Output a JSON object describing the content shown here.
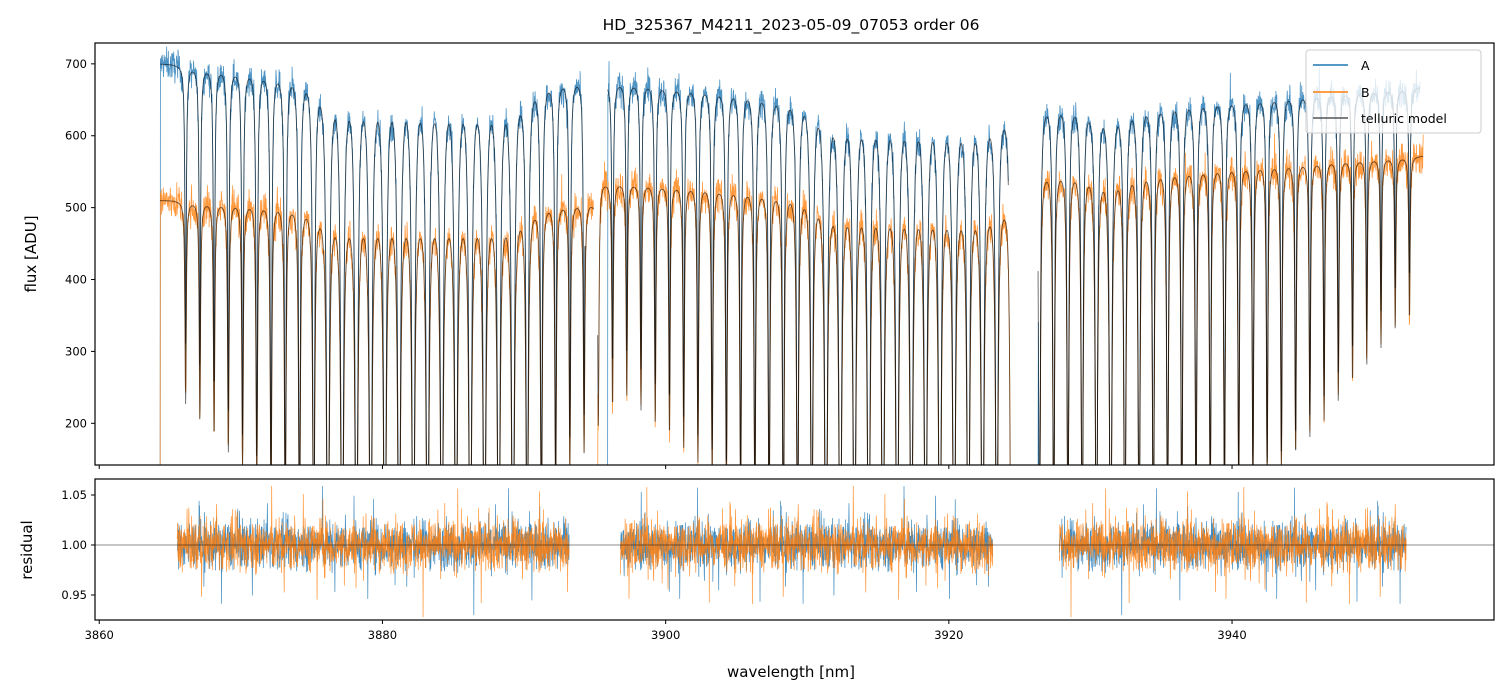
{
  "chart_data": [
    {
      "type": "line",
      "panel": "top",
      "title": "HD_325367_M4211_2023-05-09_07053  order 06",
      "xlabel": "",
      "ylabel": "flux [ADU]",
      "xlim": [
        3859.7,
        3958.5
      ],
      "ylim": [
        142,
        729
      ],
      "xticks": [
        3860,
        3880,
        3900,
        3920,
        3940
      ],
      "yticks": [
        200,
        300,
        400,
        500,
        600,
        700
      ],
      "ytick_labels": [
        "200",
        "300",
        "400",
        "500",
        "600",
        "700"
      ],
      "legend": {
        "placement": "top-right",
        "entries": [
          "A",
          "B",
          "telluric model"
        ]
      },
      "colors": {
        "A": "#1f77b4",
        "B": "#ff7f0e",
        "model": "#000000"
      },
      "series": [
        {
          "name": "A",
          "noise_rms": 11,
          "segments": [
            {
              "x": [
                3864.3,
                3894.3
              ],
              "continuum": [
                700,
                682
              ]
            },
            {
              "x": [
                3895.9,
                3924.2
              ],
              "continuum": [
                678,
                655
              ]
            },
            {
              "x": [
                3926.3,
                3953.3
              ],
              "continuum": [
                655,
                668
              ]
            }
          ]
        },
        {
          "name": "B",
          "noise_rms": 13,
          "segments": [
            {
              "x": [
                3864.3,
                3894.9
              ],
              "continuum": [
                510,
                510
              ]
            },
            {
              "x": [
                3895.2,
                3924.4
              ],
              "continuum": [
                538,
                520
              ]
            },
            {
              "x": [
                3926.4,
                3953.5
              ],
              "continuum": [
                560,
                572
              ]
            }
          ]
        }
      ],
      "telluric_lines": {
        "start": 3866.1,
        "spacing": 1.005,
        "end": 3952.6,
        "gamma_nm": 0.045,
        "depth_anchors": [
          [
            3866,
            0.55
          ],
          [
            3876,
            1.0
          ],
          [
            3890,
            1.0
          ],
          [
            3893,
            0.75
          ],
          [
            3897,
            0.55
          ],
          [
            3906,
            0.85
          ],
          [
            3911,
            1.0
          ],
          [
            3923,
            1.0
          ],
          [
            3928,
            0.9
          ],
          [
            3931,
            1.0
          ],
          [
            3936,
            0.9
          ],
          [
            3944,
            0.75
          ],
          [
            3952,
            0.4
          ]
        ]
      }
    },
    {
      "type": "line",
      "panel": "bottom",
      "xlabel": "wavelength [nm]",
      "ylabel": "residual",
      "xlim": [
        3859.7,
        3958.5
      ],
      "ylim": [
        0.925,
        1.066
      ],
      "xticks": [
        3860,
        3880,
        3900,
        3920,
        3940
      ],
      "xtick_labels": [
        "3860",
        "3880",
        "3900",
        "3920",
        "3940"
      ],
      "yticks": [
        0.95,
        1.0,
        1.05
      ],
      "ytick_labels": [
        "0.95",
        "1.00",
        "1.05"
      ],
      "reference_line": 1.0,
      "series": [
        {
          "name": "A",
          "noise_rms": 0.022,
          "segments": [
            [
              3865.5,
              3893.2
            ],
            [
              3896.8,
              3923.1
            ],
            [
              3927.8,
              3952.3
            ]
          ]
        },
        {
          "name": "B",
          "noise_rms": 0.024,
          "segments": [
            [
              3865.5,
              3893.2
            ],
            [
              3896.8,
              3923.1
            ],
            [
              3927.8,
              3952.3
            ]
          ]
        }
      ]
    }
  ]
}
